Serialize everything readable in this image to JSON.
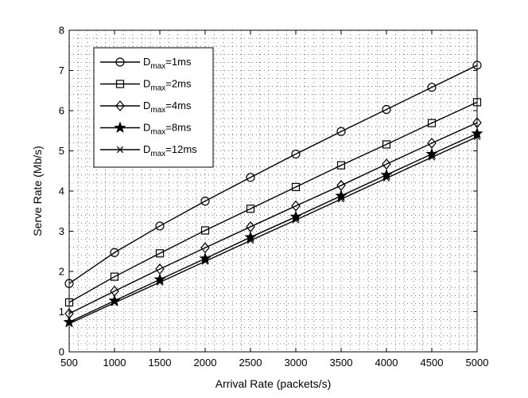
{
  "chart_data": {
    "type": "line",
    "xlabel": "Arrival Rate (packets/s)",
    "ylabel": "Serve Rate (Mb/s)",
    "xlim": [
      500,
      5000
    ],
    "ylim": [
      0,
      8
    ],
    "xticks": [
      500,
      1000,
      1500,
      2000,
      2500,
      3000,
      3500,
      4000,
      4500,
      5000
    ],
    "yticks": [
      0,
      1,
      2,
      3,
      4,
      5,
      6,
      7,
      8
    ],
    "grid": true,
    "legend_position": "top-left",
    "x": [
      500,
      1000,
      1500,
      2000,
      2500,
      3000,
      3500,
      4000,
      4500,
      5000
    ],
    "series": [
      {
        "name": "D",
        "sub": "max",
        "suffix": "=1ms",
        "marker": "circle",
        "values": [
          1.7,
          2.47,
          3.13,
          3.75,
          4.34,
          4.92,
          5.48,
          6.03,
          6.58,
          7.13
        ]
      },
      {
        "name": "D",
        "sub": "max",
        "suffix": "=2ms",
        "marker": "square",
        "values": [
          1.23,
          1.87,
          2.45,
          3.02,
          3.56,
          4.1,
          4.64,
          5.16,
          5.69,
          6.21
        ]
      },
      {
        "name": "D",
        "sub": "max",
        "suffix": "=4ms",
        "marker": "diamond",
        "values": [
          0.95,
          1.51,
          2.06,
          2.59,
          3.11,
          3.63,
          4.14,
          4.67,
          5.19,
          5.7
        ]
      },
      {
        "name": "D",
        "sub": "max",
        "suffix": "=8ms",
        "marker": "star",
        "values": [
          0.74,
          1.27,
          1.8,
          2.32,
          2.85,
          3.36,
          3.88,
          4.4,
          4.92,
          5.43
        ]
      },
      {
        "name": "D",
        "sub": "max",
        "suffix": "=12ms",
        "marker": "x",
        "values": [
          0.7,
          1.22,
          1.73,
          2.25,
          2.77,
          3.28,
          3.8,
          4.32,
          4.84,
          5.35
        ]
      }
    ]
  }
}
